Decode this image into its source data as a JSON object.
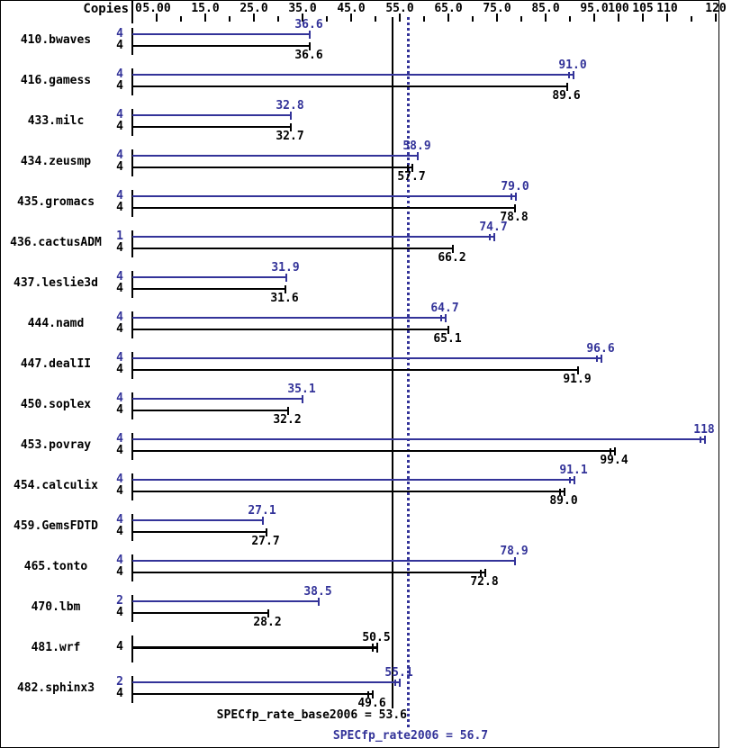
{
  "header": {
    "copies_label": "Copies"
  },
  "colors": {
    "peak_blue": "#333399",
    "base_black": "#000000",
    "background": "#ffffff",
    "border": "#000000"
  },
  "footer": {
    "base_result": {
      "label": "SPECfp_rate_base2006 = 53.6",
      "value": 53.6
    },
    "peak_result": {
      "label": "SPECfp_rate2006 = 56.7",
      "value": 56.7
    }
  },
  "chart_data": {
    "type": "bar",
    "orientation": "horizontal",
    "title": "",
    "xlabel": "Copies",
    "axis": {
      "min": 0,
      "max": 120,
      "labels": [
        {
          "text": "0",
          "value": 0
        },
        {
          "text": "5.00",
          "value": 5
        },
        {
          "text": "15.0",
          "value": 15
        },
        {
          "text": "25.0",
          "value": 25
        },
        {
          "text": "35.0",
          "value": 35
        },
        {
          "text": "45.0",
          "value": 45
        },
        {
          "text": "55.0",
          "value": 55
        },
        {
          "text": "65.0",
          "value": 65
        },
        {
          "text": "75.0",
          "value": 75
        },
        {
          "text": "85.0",
          "value": 85
        },
        {
          "text": "95.0",
          "value": 95
        },
        {
          "text": "100",
          "value": 100
        },
        {
          "text": "105",
          "value": 105
        },
        {
          "text": "110",
          "value": 110
        },
        {
          "text": "120",
          "value": 120
        }
      ],
      "minor_ticks": [
        10,
        20,
        30,
        40,
        50,
        60,
        70,
        80,
        90,
        115
      ]
    },
    "reference_lines": [
      {
        "name": "base",
        "value": 53.6,
        "style": "solid",
        "color": "#000000"
      },
      {
        "name": "peak",
        "value": 56.7,
        "style": "dotted",
        "color": "#333399"
      }
    ],
    "benchmarks": [
      {
        "name": "410.bwaves",
        "peak": {
          "copies": "4",
          "value": 36.6,
          "label": "36.6",
          "marker": "single"
        },
        "base": {
          "copies": "4",
          "value": 36.6,
          "label": "36.6",
          "marker": "single"
        }
      },
      {
        "name": "416.gamess",
        "peak": {
          "copies": "4",
          "value": 91.0,
          "label": "91.0",
          "marker": "double"
        },
        "base": {
          "copies": "4",
          "value": 89.6,
          "label": "89.6",
          "marker": "single"
        }
      },
      {
        "name": "433.milc",
        "peak": {
          "copies": "4",
          "value": 32.8,
          "label": "32.8",
          "marker": "single"
        },
        "base": {
          "copies": "4",
          "value": 32.7,
          "label": "32.7",
          "marker": "single"
        }
      },
      {
        "name": "434.zeusmp",
        "peak": {
          "copies": "4",
          "value": 58.9,
          "label": "58.9",
          "marker": "single"
        },
        "base": {
          "copies": "4",
          "value": 57.7,
          "label": "57.7",
          "marker": "double"
        }
      },
      {
        "name": "435.gromacs",
        "peak": {
          "copies": "4",
          "value": 79.0,
          "label": "79.0",
          "marker": "double"
        },
        "base": {
          "copies": "4",
          "value": 78.8,
          "label": "78.8",
          "marker": "single"
        }
      },
      {
        "name": "436.cactusADM",
        "peak": {
          "copies": "1",
          "value": 74.7,
          "label": "74.7",
          "marker": "double"
        },
        "base": {
          "copies": "4",
          "value": 66.2,
          "label": "66.2",
          "marker": "single"
        }
      },
      {
        "name": "437.leslie3d",
        "peak": {
          "copies": "4",
          "value": 31.9,
          "label": "31.9",
          "marker": "single"
        },
        "base": {
          "copies": "4",
          "value": 31.6,
          "label": "31.6",
          "marker": "single"
        }
      },
      {
        "name": "444.namd",
        "peak": {
          "copies": "4",
          "value": 64.7,
          "label": "64.7",
          "marker": "double"
        },
        "base": {
          "copies": "4",
          "value": 65.1,
          "label": "65.1",
          "marker": "single"
        }
      },
      {
        "name": "447.dealII",
        "peak": {
          "copies": "4",
          "value": 96.6,
          "label": "96.6",
          "marker": "double"
        },
        "base": {
          "copies": "4",
          "value": 91.9,
          "label": "91.9",
          "marker": "single"
        }
      },
      {
        "name": "450.soplex",
        "peak": {
          "copies": "4",
          "value": 35.1,
          "label": "35.1",
          "marker": "single"
        },
        "base": {
          "copies": "4",
          "value": 32.2,
          "label": "32.2",
          "marker": "single"
        }
      },
      {
        "name": "453.povray",
        "peak": {
          "copies": "4",
          "value": 118,
          "label": "118",
          "marker": "double"
        },
        "base": {
          "copies": "4",
          "value": 99.4,
          "label": "99.4",
          "marker": "double"
        }
      },
      {
        "name": "454.calculix",
        "peak": {
          "copies": "4",
          "value": 91.1,
          "label": "91.1",
          "marker": "double"
        },
        "base": {
          "copies": "4",
          "value": 89.0,
          "label": "89.0",
          "marker": "double"
        }
      },
      {
        "name": "459.GemsFDTD",
        "peak": {
          "copies": "4",
          "value": 27.1,
          "label": "27.1",
          "marker": "single"
        },
        "base": {
          "copies": "4",
          "value": 27.7,
          "label": "27.7",
          "marker": "single"
        }
      },
      {
        "name": "465.tonto",
        "peak": {
          "copies": "4",
          "value": 78.9,
          "label": "78.9",
          "marker": "single"
        },
        "base": {
          "copies": "4",
          "value": 72.8,
          "label": "72.8",
          "marker": "double"
        }
      },
      {
        "name": "470.lbm",
        "peak": {
          "copies": "2",
          "value": 38.5,
          "label": "38.5",
          "marker": "single"
        },
        "base": {
          "copies": "4",
          "value": 28.2,
          "label": "28.2",
          "marker": "single"
        }
      },
      {
        "name": "481.wrf",
        "peak": null,
        "base": {
          "copies": "4",
          "value": 50.5,
          "label": "50.5",
          "marker": "double"
        },
        "single_bold": true
      },
      {
        "name": "482.sphinx3",
        "peak": {
          "copies": "2",
          "value": 55.1,
          "label": "55.1",
          "marker": "double"
        },
        "base": {
          "copies": "4",
          "value": 49.6,
          "label": "49.6",
          "marker": "double"
        }
      }
    ]
  }
}
